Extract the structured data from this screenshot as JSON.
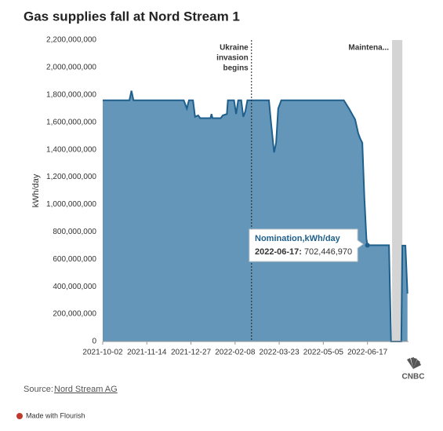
{
  "chart_data": {
    "type": "area",
    "title": "Gas supplies fall at Nord Stream 1",
    "y_label": "kWh/day",
    "series": [
      {
        "name": "Nomination,kWh/day",
        "color": "#6396b9",
        "line_color": "#1e5f8c",
        "x": [
          "2021-10-02",
          "2021-10-28",
          "2021-10-30",
          "2021-11-01",
          "2021-12-20",
          "2021-12-23",
          "2021-12-25",
          "2021-12-29",
          "2021-12-31",
          "2022-01-03",
          "2022-01-05",
          "2022-01-15",
          "2022-01-16",
          "2022-01-17",
          "2022-01-25",
          "2022-01-27",
          "2022-01-31",
          "2022-02-01",
          "2022-02-07",
          "2022-02-09",
          "2022-02-11",
          "2022-02-14",
          "2022-02-16",
          "2022-02-18",
          "2022-02-20",
          "2022-03-13",
          "2022-03-15",
          "2022-03-18",
          "2022-03-20",
          "2022-03-22",
          "2022-03-25",
          "2022-05-25",
          "2022-05-30",
          "2022-06-05",
          "2022-06-08",
          "2022-06-10",
          "2022-06-12",
          "2022-06-14",
          "2022-06-16",
          "2022-06-17",
          "2022-07-08",
          "2022-07-10",
          "2022-07-20",
          "2022-07-21",
          "2022-07-24",
          "2022-07-26"
        ],
        "values": [
          1760000000,
          1760000000,
          1830000000,
          1760000000,
          1760000000,
          1700000000,
          1760000000,
          1760000000,
          1640000000,
          1650000000,
          1630000000,
          1630000000,
          1660000000,
          1630000000,
          1630000000,
          1650000000,
          1660000000,
          1760000000,
          1760000000,
          1660000000,
          1760000000,
          1760000000,
          1640000000,
          1680000000,
          1760000000,
          1760000000,
          1600000000,
          1380000000,
          1450000000,
          1700000000,
          1760000000,
          1760000000,
          1700000000,
          1620000000,
          1520000000,
          1480000000,
          1450000000,
          1050000000,
          750000000,
          702446970,
          702446970,
          0,
          0,
          700000000,
          700000000,
          350000000
        ]
      }
    ],
    "xlim": [
      "2021-10-02",
      "2022-07-27"
    ],
    "xticks": [
      "2021-10-02",
      "2021-11-14",
      "2021-12-27",
      "2022-02-08",
      "2022-03-23",
      "2022-05-05",
      "2022-06-17"
    ],
    "ylim": [
      0,
      2200000000
    ],
    "yticks": [
      0,
      {
        "value": 200000000,
        "label": "200,000,000"
      },
      {
        "value": 400000000,
        "label": "400,000,000"
      },
      {
        "value": 600000000,
        "label": "600,000,000"
      },
      {
        "value": 800000000,
        "label": "800,000,000"
      },
      {
        "value": 1000000000,
        "label": "1,000,000,000"
      },
      {
        "value": 1200000000,
        "label": "1,200,000,000"
      },
      {
        "value": 1400000000,
        "label": "1,400,000,000"
      },
      {
        "value": 1600000000,
        "label": "1,600,000,000"
      },
      {
        "value": 1800000000,
        "label": "1,800,000,000"
      },
      {
        "value": 2000000000,
        "label": "2,000,000,000"
      },
      {
        "value": 2200000000,
        "label": "2,200,000,000"
      }
    ],
    "annotations": [
      {
        "kind": "line",
        "x": "2022-02-24",
        "text": [
          "Ukraine",
          "invasion",
          "begins"
        ]
      },
      {
        "kind": "band",
        "x": [
          "2022-07-11",
          "2022-07-21"
        ],
        "text": [
          "Maintena..."
        ]
      }
    ],
    "tooltip": {
      "x": "2022-06-17",
      "label": "2022-06-17:",
      "value": 702446970,
      "value_label": "702,446,970"
    },
    "source_label": "Source:",
    "source": "Nord Stream AG",
    "logo": "CNBC",
    "footer": "Made with Flourish"
  }
}
